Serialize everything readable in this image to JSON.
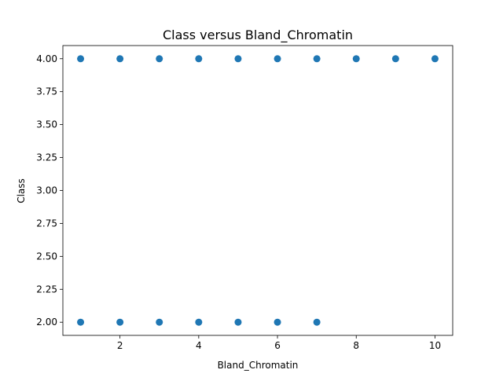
{
  "chart_data": {
    "type": "scatter",
    "title": "Class versus Bland_Chromatin",
    "xlabel": "Bland_Chromatin",
    "ylabel": "Class",
    "xlim": [
      0.55,
      10.45
    ],
    "ylim": [
      1.9,
      4.1
    ],
    "xticks": [
      2,
      4,
      6,
      8,
      10
    ],
    "xtick_labels": [
      "2",
      "4",
      "6",
      "8",
      "10"
    ],
    "yticks": [
      2.0,
      2.25,
      2.5,
      2.75,
      3.0,
      3.25,
      3.5,
      3.75,
      4.0
    ],
    "ytick_labels": [
      "2.00",
      "2.25",
      "2.50",
      "2.75",
      "3.00",
      "3.25",
      "3.50",
      "3.75",
      "4.00"
    ],
    "grid": false,
    "marker_color": "#1f77b4",
    "points": [
      {
        "x": 1,
        "y": 4
      },
      {
        "x": 2,
        "y": 4
      },
      {
        "x": 3,
        "y": 4
      },
      {
        "x": 4,
        "y": 4
      },
      {
        "x": 5,
        "y": 4
      },
      {
        "x": 6,
        "y": 4
      },
      {
        "x": 7,
        "y": 4
      },
      {
        "x": 8,
        "y": 4
      },
      {
        "x": 9,
        "y": 4
      },
      {
        "x": 10,
        "y": 4
      },
      {
        "x": 1,
        "y": 2
      },
      {
        "x": 2,
        "y": 2
      },
      {
        "x": 3,
        "y": 2
      },
      {
        "x": 4,
        "y": 2
      },
      {
        "x": 5,
        "y": 2
      },
      {
        "x": 6,
        "y": 2
      },
      {
        "x": 7,
        "y": 2
      }
    ]
  }
}
